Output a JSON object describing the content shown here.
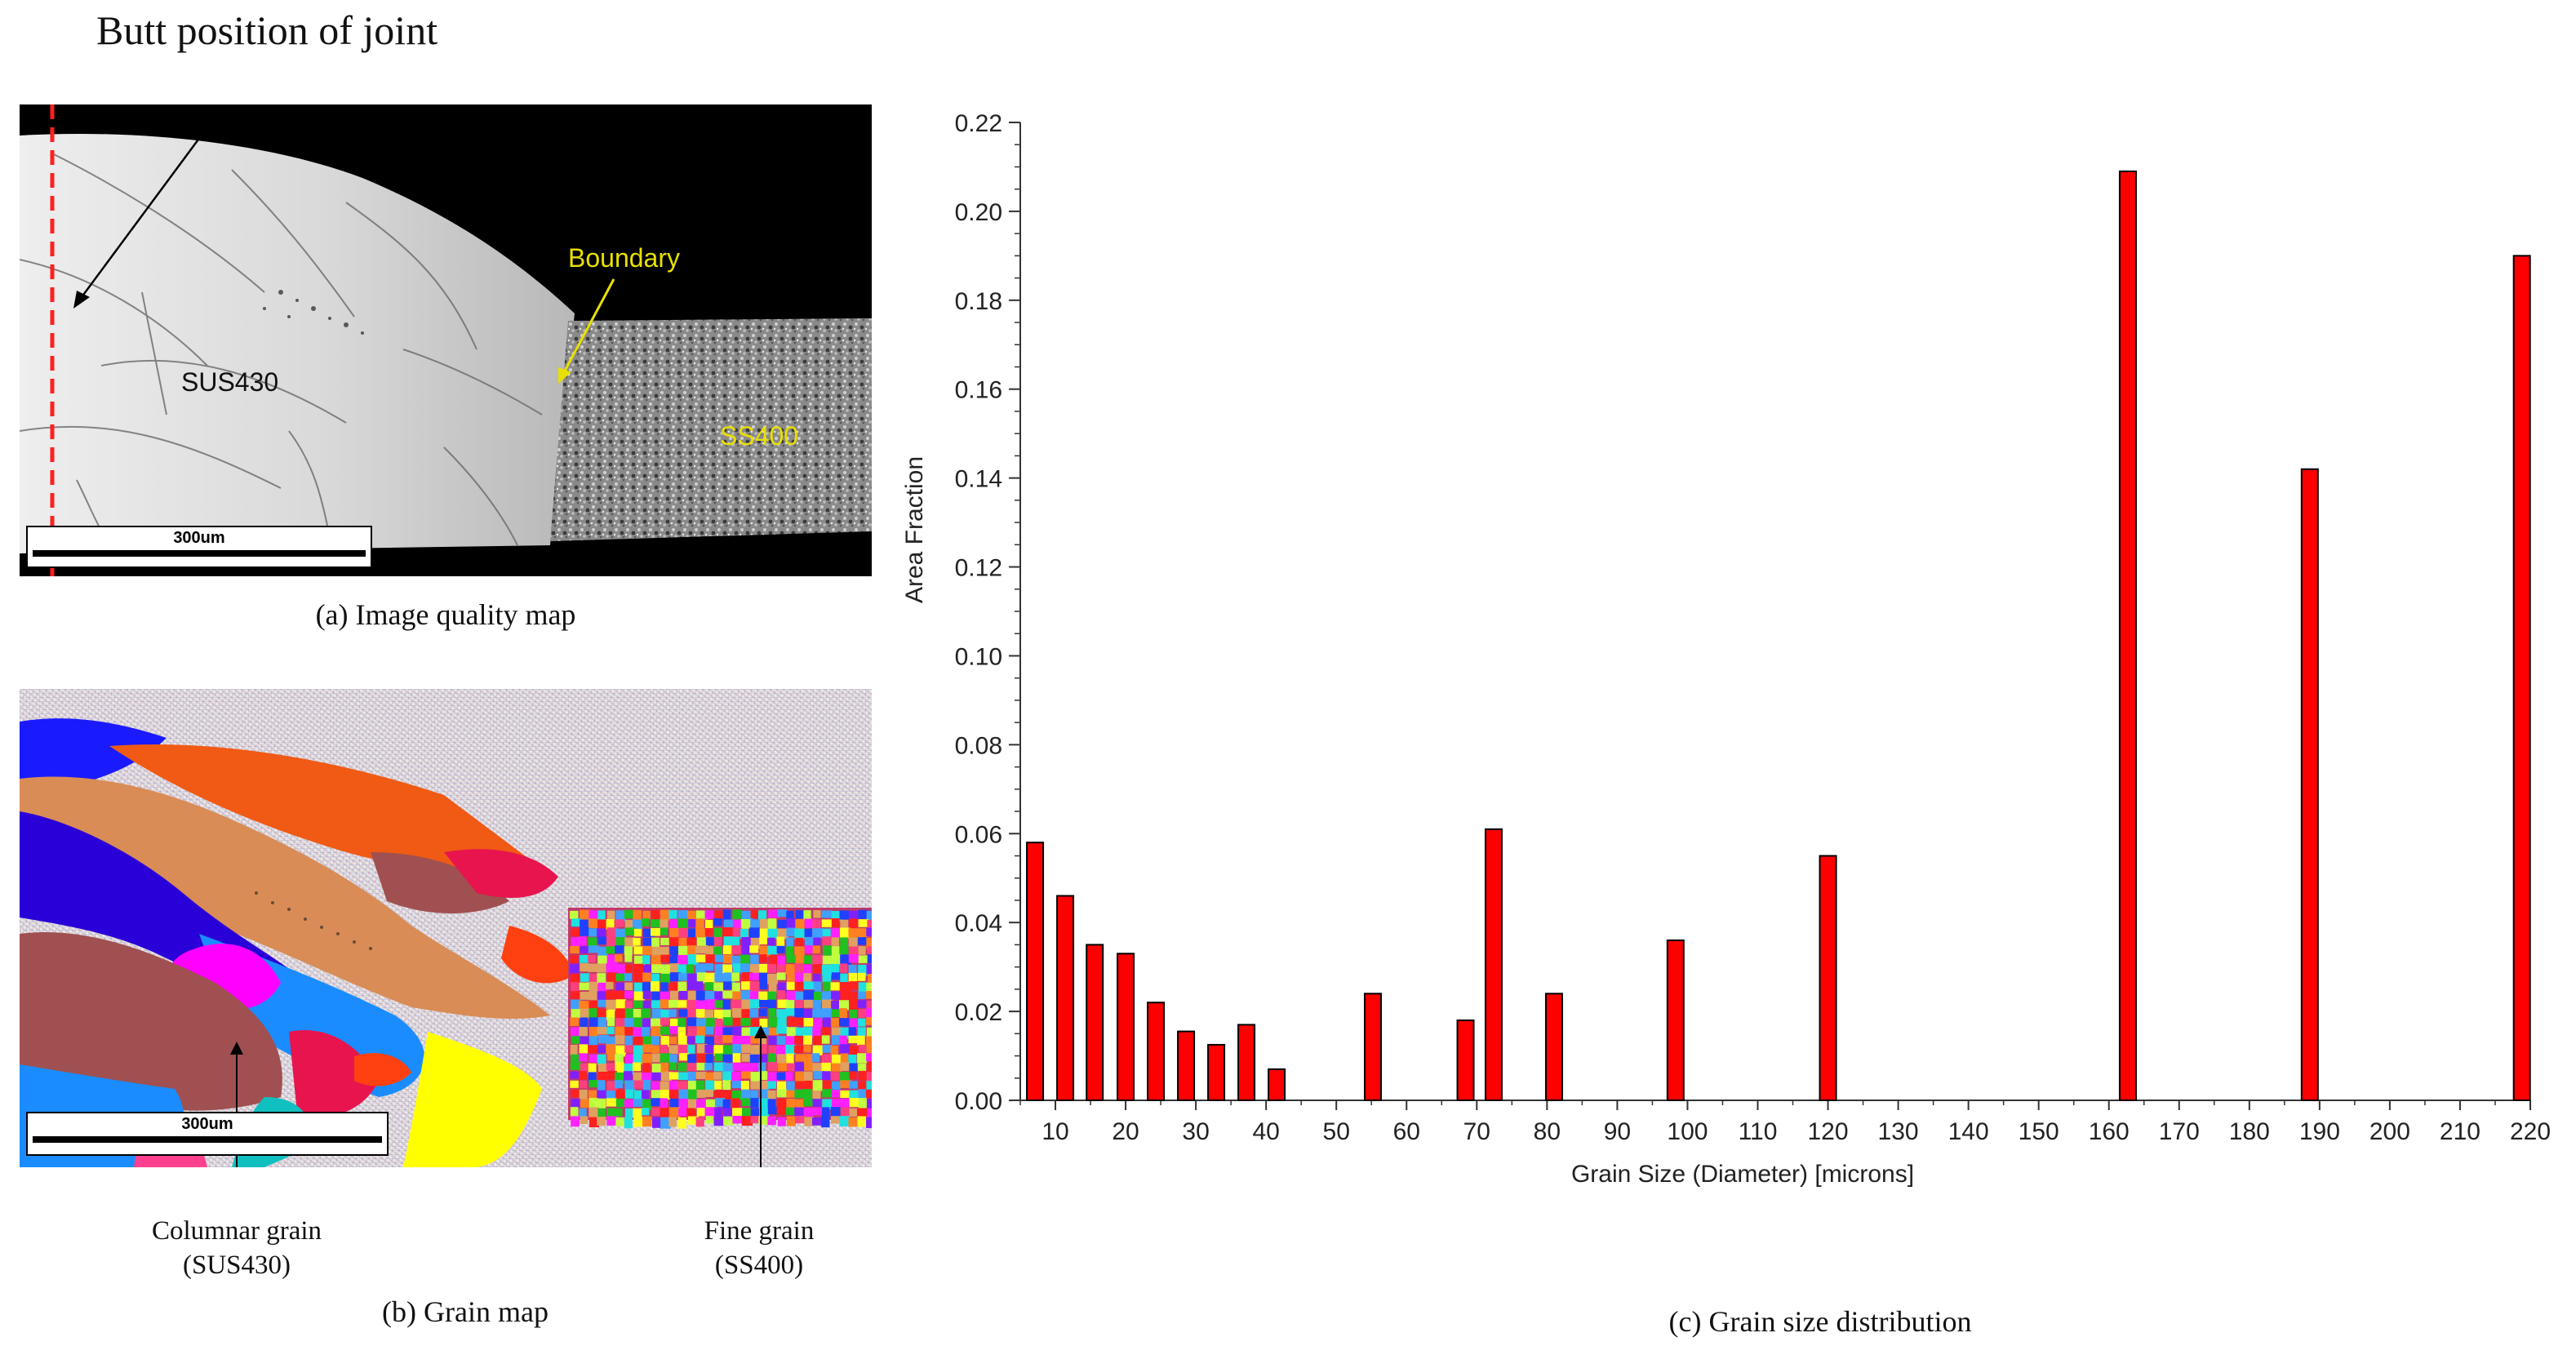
{
  "figure": {
    "panel_a": {
      "annotation_butt": "Butt position of joint",
      "label_boundary": "Boundary",
      "label_sus430": "SUS430",
      "label_ss400": "SS400",
      "scalebar": "300um",
      "caption": "(a) Image quality  map"
    },
    "panel_b": {
      "scalebar": "300um",
      "label_columnar": "Columnar grain",
      "label_columnar_sub": "(SUS430)",
      "label_fine": "Fine grain",
      "label_fine_sub": "(SS400)",
      "caption": "(b) Grain map"
    },
    "panel_c": {
      "caption": "(c) Grain size distribution"
    },
    "colors": {
      "bar_fill": "#ff0000",
      "boundary_text": "#e8e000",
      "dashed_line": "#ff2020"
    }
  },
  "chart_data": {
    "type": "bar",
    "xlabel": "Grain Size (Diameter) [microns]",
    "ylabel": "Area Fraction",
    "xlim": [
      5,
      220
    ],
    "ylim": [
      0,
      0.22
    ],
    "x_ticks": [
      "10",
      "20",
      "30",
      "40",
      "50",
      "60",
      "70",
      "80",
      "90",
      "100",
      "110",
      "120",
      "130",
      "140",
      "150",
      "160",
      "170",
      "180",
      "190",
      "200",
      "210",
      "220"
    ],
    "y_ticks": [
      "0.00",
      "0.02",
      "0.04",
      "0.06",
      "0.08",
      "0.10",
      "0.12",
      "0.14",
      "0.16",
      "0.18",
      "0.20",
      "0.22"
    ],
    "x": [
      7.1,
      11.4,
      15.6,
      20.0,
      24.3,
      28.6,
      32.9,
      37.2,
      41.5,
      55.2,
      68.4,
      72.4,
      81.0,
      98.3,
      120.0,
      162.7,
      188.6,
      218.8
    ],
    "values": [
      0.058,
      0.046,
      0.035,
      0.033,
      0.022,
      0.0155,
      0.0125,
      0.017,
      0.007,
      0.024,
      0.018,
      0.061,
      0.024,
      0.036,
      0.055,
      0.209,
      0.142,
      0.19
    ]
  }
}
